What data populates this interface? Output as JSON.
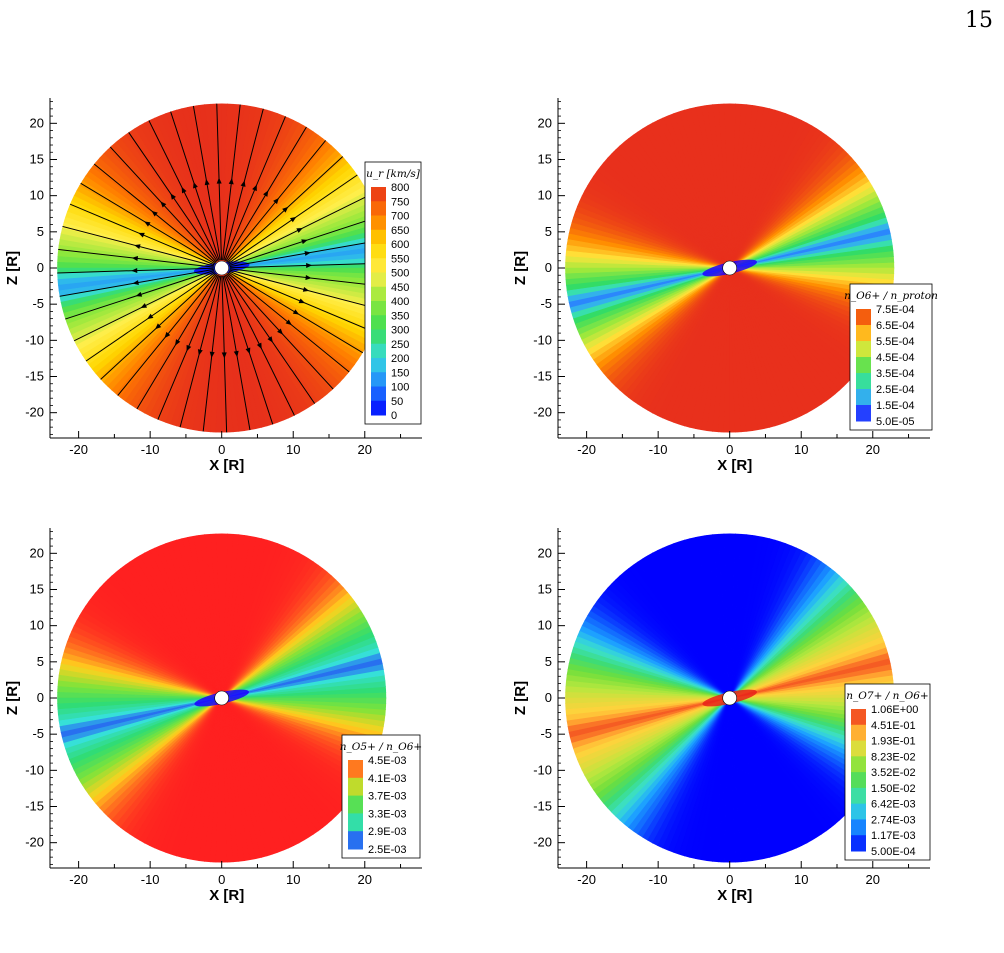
{
  "page": {
    "number": "15"
  },
  "chart_data": [
    {
      "type": "heatmap",
      "xlabel": "X [R]",
      "ylabel": "Z [R]",
      "xticks": [
        -20,
        -10,
        0,
        10,
        20
      ],
      "yticks": [
        -20,
        -15,
        -10,
        -5,
        0,
        5,
        10,
        15,
        20
      ],
      "xlim": [
        -24,
        28
      ],
      "ylim": [
        -23.5,
        23.5
      ],
      "domain_radius": 23,
      "legend": {
        "title": "u_r [km/s]",
        "position": "right",
        "levels": [
          "800",
          "750",
          "700",
          "650",
          "600",
          "550",
          "500",
          "450",
          "400",
          "350",
          "300",
          "250",
          "200",
          "150",
          "100",
          "50",
          "0"
        ]
      },
      "colormap": [
        "#e7301b",
        "#ff7a00",
        "#ffd700",
        "#ffee4a",
        "#8fe83c",
        "#38dd55",
        "#37dcdf",
        "#2080ff",
        "#0000ff"
      ],
      "field": {
        "polar": 700,
        "equator": 320,
        "current_sheet": 20,
        "tilt_deg": 7,
        "width_deg": 35
      },
      "streamlines": true
    },
    {
      "type": "heatmap",
      "xlabel": "X [R]",
      "ylabel": "Z [R]",
      "xticks": [
        -20,
        -10,
        0,
        10,
        20
      ],
      "yticks": [
        -20,
        -15,
        -10,
        -5,
        0,
        5,
        10,
        15,
        20
      ],
      "xlim": [
        -24,
        28
      ],
      "ylim": [
        -23.5,
        23.5
      ],
      "domain_radius": 23,
      "legend": {
        "title": "n_O6+ / n_proton",
        "position": "lower-right",
        "levels": [
          "7.5E-04",
          "6.5E-04",
          "5.5E-04",
          "4.5E-04",
          "3.5E-04",
          "2.5E-04",
          "1.5E-04",
          "5.0E-05"
        ]
      },
      "colormap": [
        "#e8301c",
        "#ff8c00",
        "#ffe53c",
        "#9ee83c",
        "#32dc5f",
        "#3ce0d8",
        "#2a80ff",
        "#1e00ff"
      ],
      "field": {
        "polar": 0.00075,
        "equator": 0.00038,
        "current_sheet": 0.00015,
        "tilt_deg": 13,
        "width_deg": 20
      },
      "streamlines": false
    },
    {
      "type": "heatmap",
      "xlabel": "X [R]",
      "ylabel": "Z [R]",
      "xticks": [
        -20,
        -10,
        0,
        10,
        20
      ],
      "yticks": [
        -20,
        -15,
        -10,
        -5,
        0,
        5,
        10,
        15,
        20
      ],
      "xlim": [
        -24,
        28
      ],
      "ylim": [
        -23.5,
        23.5
      ],
      "domain_radius": 23,
      "legend": {
        "title": "n_O5+ / n_O6+",
        "position": "lower-right",
        "levels": [
          "4.5E-03",
          "4.1E-03",
          "3.7E-03",
          "3.3E-03",
          "2.9E-03",
          "2.5E-03"
        ]
      },
      "colormap": [
        "#ff2020",
        "#ffd21e",
        "#7ee33a",
        "#30dc70",
        "#36e0e0",
        "#1a00ff"
      ],
      "field": {
        "polar": 0.0037,
        "equator": 0.0031,
        "current_sheet": 0.0029,
        "tilt_deg": 13,
        "width_deg": 22
      },
      "streamlines": false
    },
    {
      "type": "heatmap",
      "xlabel": "X [R]",
      "ylabel": "Z [R]",
      "xticks": [
        -20,
        -10,
        0,
        10,
        20
      ],
      "yticks": [
        -20,
        -15,
        -10,
        -5,
        0,
        5,
        10,
        15,
        20
      ],
      "xlim": [
        -24,
        28
      ],
      "ylim": [
        -23.5,
        23.5
      ],
      "domain_radius": 23,
      "legend": {
        "title": "n_O7+ / n_O6+",
        "position": "lower-right",
        "levels": [
          "1.06E+00",
          "4.51E-01",
          "1.93E-01",
          "8.23E-02",
          "3.52E-02",
          "1.50E-02",
          "6.42E-03",
          "2.74E-03",
          "1.17E-03",
          "5.00E-04"
        ]
      },
      "colormap": [
        "#e8201a",
        "#ff8d2a",
        "#ffd23c",
        "#b6e83e",
        "#6ede3c",
        "#3cdc78",
        "#3ce0cf",
        "#1ea8ff",
        "#1060ff",
        "#0000ff"
      ],
      "field": {
        "polar": 0.015,
        "equator": 0.45,
        "current_sheet": 1.06,
        "tilt_deg": 13,
        "width_deg": 22
      },
      "streamlines": false
    }
  ]
}
